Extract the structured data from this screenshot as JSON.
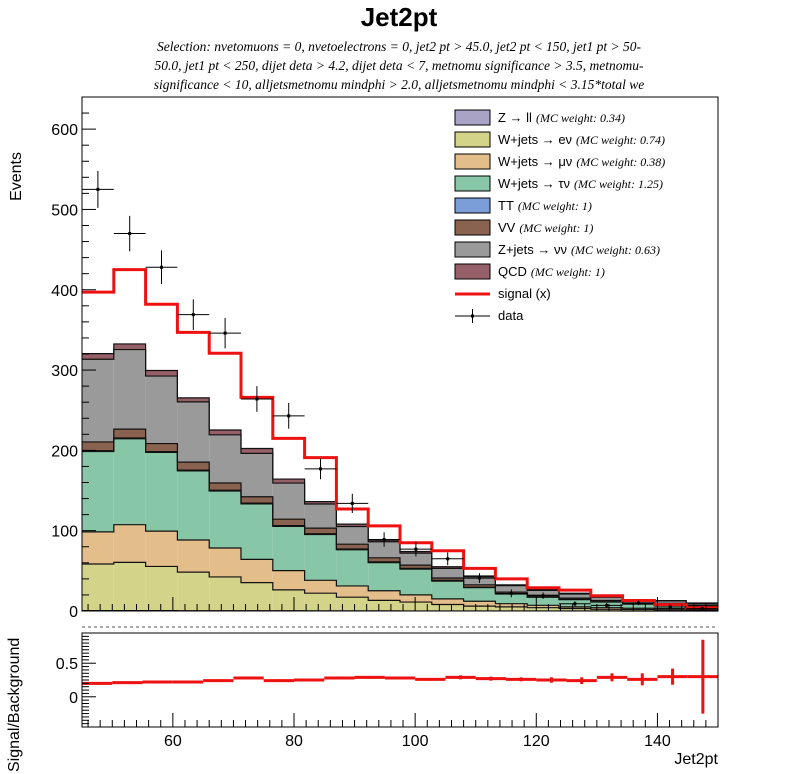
{
  "chart_data": [
    {
      "type": "stacked-histogram",
      "title": "Jet2pt",
      "selection_lines": [
        "Selection: nvetomuons = 0, nvetoelectrons = 0, jet2 pt > 45.0, jet2 pt < 150, jet1 pt > 50-",
        "50.0, jet1 pt < 250, dijet deta > 4.2, dijet deta < 7, metnomu significance > 3.5, metnomu-",
        "significance < 10, alljetsmetnomu mindphi > 2.0, alljetsmetnomu mindphi < 3.15*total we"
      ],
      "ylabel": "Events",
      "xlim": [
        45,
        150
      ],
      "ylim": [
        0,
        640
      ],
      "yticks": [
        0,
        100,
        200,
        300,
        400,
        500,
        600
      ],
      "bin_edges": [
        45,
        50.25,
        55.5,
        60.75,
        66,
        71.25,
        76.5,
        81.75,
        87,
        92.25,
        97.5,
        102.75,
        108,
        113.25,
        118.5,
        123.75,
        129,
        134.25,
        139.5,
        144.75,
        150
      ],
      "stack": [
        {
          "name": "Z → ll",
          "weight": "(MC weight: 0.34)",
          "color": "#a9a3c6",
          "values": [
            0.5,
            0.5,
            0.5,
            0.4,
            0.4,
            0.3,
            0.3,
            0.2,
            0.2,
            0.2,
            0.1,
            0.1,
            0.1,
            0.1,
            0.1,
            0.1,
            0.1,
            0,
            0,
            0
          ]
        },
        {
          "name": "W+jets → eν",
          "weight": "(MC weight: 0.74)",
          "color": "#d4d38a",
          "values": [
            58,
            60,
            55,
            48,
            42,
            35,
            26,
            22,
            17,
            13,
            11,
            8,
            6,
            5,
            4,
            3,
            2,
            2,
            1.5,
            1
          ]
        },
        {
          "name": "W+jets → μν",
          "weight": "(MC weight: 0.38)",
          "color": "#e3bd8a",
          "values": [
            40,
            47,
            44,
            40,
            36,
            29,
            24,
            16,
            14,
            12,
            9,
            7,
            6,
            4,
            3,
            2,
            2,
            1.5,
            1.5,
            1
          ]
        },
        {
          "name": "W+jets → τν",
          "weight": "(MC weight: 1.25)",
          "color": "#88c6a8",
          "values": [
            100,
            107,
            98,
            86,
            71,
            69,
            55,
            57,
            45,
            35,
            32,
            22,
            17,
            12,
            10,
            9,
            7,
            5,
            5,
            4
          ]
        },
        {
          "name": "TT",
          "weight": "(MC weight: 1)",
          "color": "#7b9dd8",
          "values": [
            1,
            1,
            1,
            1,
            1,
            1,
            1,
            1,
            1,
            1,
            1,
            1,
            0.5,
            0.5,
            0.5,
            0.5,
            0.5,
            0.5,
            0.5,
            0.5
          ]
        },
        {
          "name": "VV",
          "weight": "(MC weight: 1)",
          "color": "#8a6250",
          "values": [
            11,
            11,
            10,
            10,
            9,
            8,
            8,
            7,
            6,
            5,
            4,
            3,
            3,
            2,
            2,
            1.5,
            1.5,
            1,
            1,
            1
          ]
        },
        {
          "name": "Z+jets → νν",
          "weight": "(MC weight: 0.63)",
          "color": "#9a9a9a",
          "values": [
            103,
            99,
            84,
            75,
            60,
            54,
            45,
            30,
            22,
            20,
            15,
            12,
            10,
            8,
            6,
            5,
            4,
            3,
            3,
            2
          ]
        },
        {
          "name": "QCD",
          "weight": "(MC weight: 1)",
          "color": "#966068",
          "values": [
            7,
            7,
            7,
            5,
            6,
            6,
            5,
            3,
            3,
            2,
            2,
            2,
            1,
            1,
            1,
            1,
            1,
            0.5,
            0.5,
            0.5
          ]
        }
      ],
      "signal": {
        "name": "signal (x)",
        "color": "#ee1111",
        "values": [
          397,
          425,
          382,
          347,
          321,
          266,
          215,
          191,
          127,
          106,
          85,
          75,
          53,
          40,
          29,
          26,
          19,
          13,
          8,
          4
        ]
      },
      "data": {
        "name": "data",
        "values": [
          525,
          470,
          428,
          369,
          346,
          264,
          243,
          177,
          134,
          89,
          77,
          65,
          41,
          22,
          19,
          9,
          7,
          10,
          5,
          3
        ],
        "errors": [
          23,
          22,
          21,
          19,
          19,
          16,
          16,
          13,
          12,
          9,
          9,
          8,
          6,
          5,
          4,
          3,
          3,
          3,
          2,
          2
        ]
      }
    },
    {
      "type": "ratio",
      "ylabel": "Signal/Background",
      "xlabel": "Jet2pt",
      "xlim": [
        45,
        150
      ],
      "ylim": [
        -0.45,
        0.95
      ],
      "yticks": [
        0,
        0.5
      ],
      "xticks": [
        60,
        80,
        100,
        120,
        140
      ],
      "values": [
        0.2,
        0.21,
        0.22,
        0.22,
        0.24,
        0.28,
        0.24,
        0.25,
        0.28,
        0.29,
        0.28,
        0.26,
        0.29,
        0.27,
        0.26,
        0.25,
        0.24,
        0.29,
        0.26,
        0.3,
        0.3
      ],
      "errors": [
        0.02,
        0.02,
        0.02,
        0.02,
        0.02,
        0.02,
        0.02,
        0.02,
        0.02,
        0.02,
        0.02,
        0.02,
        0.03,
        0.03,
        0.03,
        0.04,
        0.05,
        0.06,
        0.09,
        0.12,
        0.55
      ]
    }
  ]
}
